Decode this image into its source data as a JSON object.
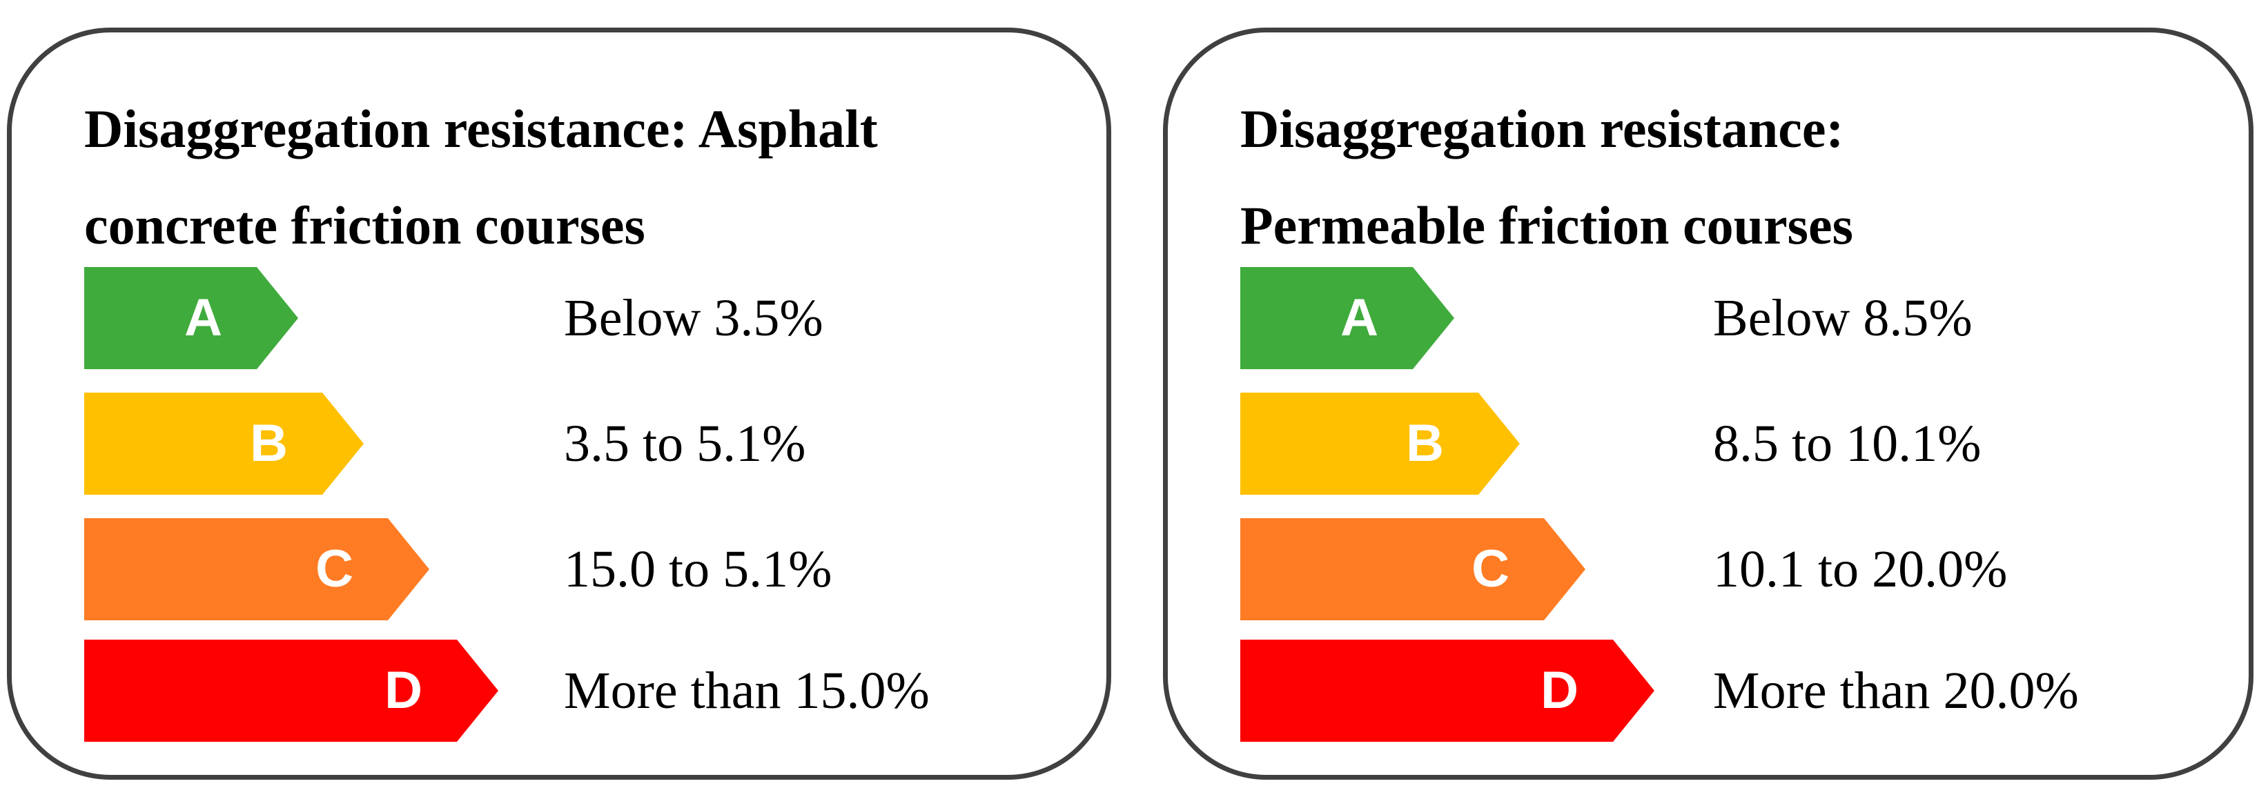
{
  "panels": [
    {
      "title_lines": [
        "Disaggregation resistance: Asphalt",
        "concrete friction courses"
      ],
      "ratings": [
        {
          "grade": "A",
          "range": "Below 3.5%",
          "color": "#3fab3c"
        },
        {
          "grade": "B",
          "range": "3.5 to 5.1%",
          "color": "#ffc000"
        },
        {
          "grade": "C",
          "range": "15.0 to 5.1%",
          "color": "#ff7c24"
        },
        {
          "grade": "D",
          "range": "More than 15.0%",
          "color": "#ff0000"
        }
      ]
    },
    {
      "title_lines": [
        "Disaggregation resistance:",
        "Permeable friction courses"
      ],
      "ratings": [
        {
          "grade": "A",
          "range": "Below 8.5%",
          "color": "#3fab3c"
        },
        {
          "grade": "B",
          "range": "8.5 to 10.1%",
          "color": "#ffc000"
        },
        {
          "grade": "C",
          "range": "10.1 to 20.0%",
          "color": "#ff7c24"
        },
        {
          "grade": "D",
          "range": "More than 20.0%",
          "color": "#ff0000"
        }
      ]
    }
  ]
}
